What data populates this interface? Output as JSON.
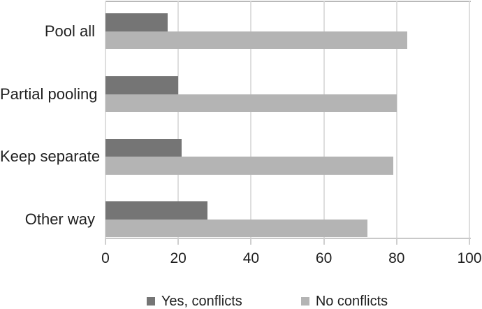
{
  "chart_data": {
    "type": "bar",
    "orientation": "horizontal",
    "title": "",
    "xlabel": "",
    "ylabel": "",
    "categories": [
      "Pool all",
      "Partial pooling",
      "Keep separate",
      "Other way"
    ],
    "series": [
      {
        "name": "Yes, conflicts",
        "color": "#757575",
        "values": [
          17,
          20,
          21,
          28
        ]
      },
      {
        "name": "No conflicts",
        "color": "#b4b4b4",
        "values": [
          83,
          80,
          79,
          72
        ]
      }
    ],
    "xlim": [
      0,
      100
    ],
    "x_ticks": [
      0,
      20,
      40,
      60,
      80,
      100
    ],
    "grid": "vertical",
    "legend_position": "bottom"
  },
  "colors": {
    "bar_dark": "#757575",
    "bar_light": "#b4b4b4",
    "gridline": "#dedede",
    "axis_line": "#c9c9c9",
    "text": "#1f1f1f",
    "background": "#ffffff"
  }
}
